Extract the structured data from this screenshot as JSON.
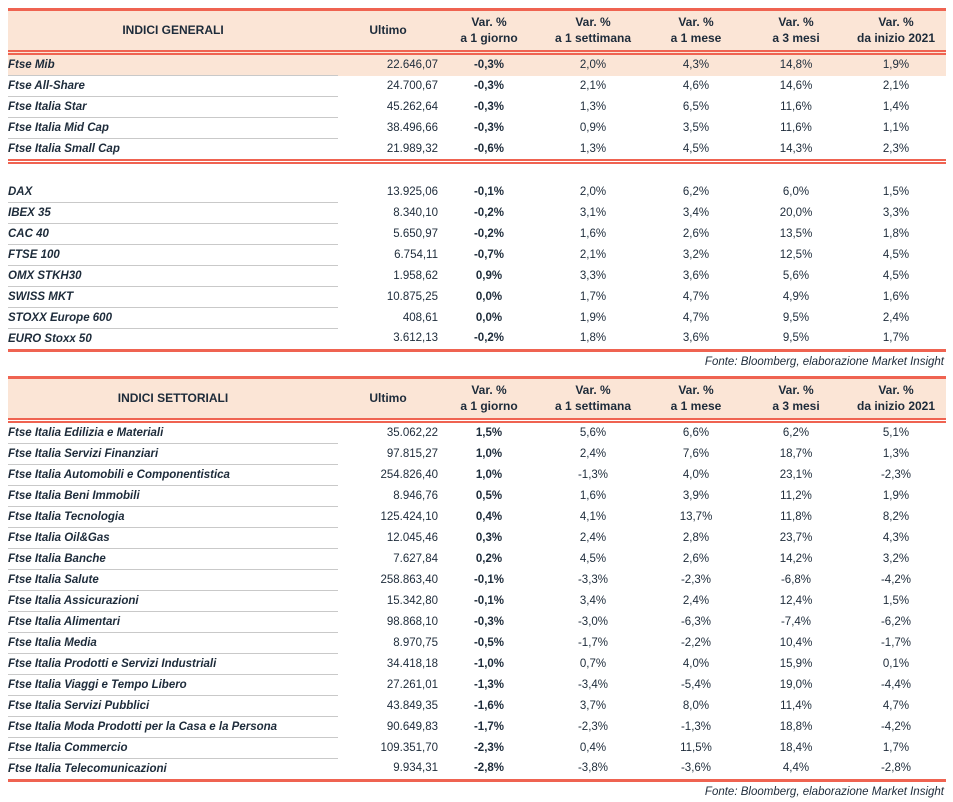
{
  "source_note": "Fonte: Bloomberg, elaborazione Market Insight",
  "colors": {
    "accent_red": "#ef6351",
    "header_peach": "#fbe5d6",
    "text_dark": "#1d2b3a",
    "row_separator_gray": "#c9c9c9"
  },
  "column_headers": {
    "var_label": "Var. %",
    "ultimo": "Ultimo",
    "periods": [
      "a 1 giorno",
      "a 1 settimana",
      "a 1 mese",
      "a 3 mesi",
      "da inizio 2021"
    ]
  },
  "tables": [
    {
      "title": "INDICI GENERALI",
      "groups": [
        {
          "rows": [
            {
              "name": "Ftse Mib",
              "ultimo": "22.646,07",
              "vars": [
                "-0,3%",
                "2,0%",
                "4,3%",
                "14,8%",
                "1,9%"
              ],
              "highlight": true
            },
            {
              "name": "Ftse All-Share",
              "ultimo": "24.700,67",
              "vars": [
                "-0,3%",
                "2,1%",
                "4,6%",
                "14,6%",
                "2,1%"
              ]
            },
            {
              "name": "Ftse Italia Star",
              "ultimo": "45.262,64",
              "vars": [
                "-0,3%",
                "1,3%",
                "6,5%",
                "11,6%",
                "1,4%"
              ]
            },
            {
              "name": "Ftse Italia Mid Cap",
              "ultimo": "38.496,66",
              "vars": [
                "-0,3%",
                "0,9%",
                "3,5%",
                "11,6%",
                "1,1%"
              ]
            },
            {
              "name": "Ftse Italia Small Cap",
              "ultimo": "21.989,32",
              "vars": [
                "-0,6%",
                "1,3%",
                "4,5%",
                "14,3%",
                "2,3%"
              ]
            }
          ]
        },
        {
          "rows": [
            {
              "name": "DAX",
              "ultimo": "13.925,06",
              "vars": [
                "-0,1%",
                "2,0%",
                "6,2%",
                "6,0%",
                "1,5%"
              ]
            },
            {
              "name": "IBEX 35",
              "ultimo": "8.340,10",
              "vars": [
                "-0,2%",
                "3,1%",
                "3,4%",
                "20,0%",
                "3,3%"
              ]
            },
            {
              "name": "CAC 40",
              "ultimo": "5.650,97",
              "vars": [
                "-0,2%",
                "1,6%",
                "2,6%",
                "13,5%",
                "1,8%"
              ]
            },
            {
              "name": "FTSE 100",
              "ultimo": "6.754,11",
              "vars": [
                "-0,7%",
                "2,1%",
                "3,2%",
                "12,5%",
                "4,5%"
              ]
            },
            {
              "name": "OMX STKH30",
              "ultimo": "1.958,62",
              "vars": [
                "0,9%",
                "3,3%",
                "3,6%",
                "5,6%",
                "4,5%"
              ]
            },
            {
              "name": "SWISS MKT",
              "ultimo": "10.875,25",
              "vars": [
                "0,0%",
                "1,7%",
                "4,7%",
                "4,9%",
                "1,6%"
              ]
            },
            {
              "name": "STOXX Europe 600",
              "ultimo": "408,61",
              "vars": [
                "0,0%",
                "1,9%",
                "4,7%",
                "9,5%",
                "2,4%"
              ]
            },
            {
              "name": "EURO Stoxx 50",
              "ultimo": "3.612,13",
              "vars": [
                "-0,2%",
                "1,8%",
                "3,6%",
                "9,5%",
                "1,7%"
              ]
            }
          ]
        }
      ]
    },
    {
      "title": "INDICI SETTORIALI",
      "groups": [
        {
          "rows": [
            {
              "name": "Ftse Italia Edilizia e Materiali",
              "ultimo": "35.062,22",
              "vars": [
                "1,5%",
                "5,6%",
                "6,6%",
                "6,2%",
                "5,1%"
              ]
            },
            {
              "name": "Ftse Italia Servizi Finanziari",
              "ultimo": "97.815,27",
              "vars": [
                "1,0%",
                "2,4%",
                "7,6%",
                "18,7%",
                "1,3%"
              ]
            },
            {
              "name": "Ftse Italia Automobili e Componentistica",
              "ultimo": "254.826,40",
              "vars": [
                "1,0%",
                "-1,3%",
                "4,0%",
                "23,1%",
                "-2,3%"
              ]
            },
            {
              "name": "Ftse Italia Beni Immobili",
              "ultimo": "8.946,76",
              "vars": [
                "0,5%",
                "1,6%",
                "3,9%",
                "11,2%",
                "1,9%"
              ]
            },
            {
              "name": "Ftse Italia Tecnologia",
              "ultimo": "125.424,10",
              "vars": [
                "0,4%",
                "4,1%",
                "13,7%",
                "11,8%",
                "8,2%"
              ]
            },
            {
              "name": "Ftse Italia Oil&Gas",
              "ultimo": "12.045,46",
              "vars": [
                "0,3%",
                "2,4%",
                "2,8%",
                "23,7%",
                "4,3%"
              ]
            },
            {
              "name": "Ftse Italia Banche",
              "ultimo": "7.627,84",
              "vars": [
                "0,2%",
                "4,5%",
                "2,6%",
                "14,2%",
                "3,2%"
              ]
            },
            {
              "name": "Ftse Italia Salute",
              "ultimo": "258.863,40",
              "vars": [
                "-0,1%",
                "-3,3%",
                "-2,3%",
                "-6,8%",
                "-4,2%"
              ]
            },
            {
              "name": "Ftse Italia Assicurazioni",
              "ultimo": "15.342,80",
              "vars": [
                "-0,1%",
                "3,4%",
                "2,4%",
                "12,4%",
                "1,5%"
              ]
            },
            {
              "name": "Ftse Italia Alimentari",
              "ultimo": "98.868,10",
              "vars": [
                "-0,3%",
                "-3,0%",
                "-6,3%",
                "-7,4%",
                "-6,2%"
              ]
            },
            {
              "name": "Ftse Italia Media",
              "ultimo": "8.970,75",
              "vars": [
                "-0,5%",
                "-1,7%",
                "-2,2%",
                "10,4%",
                "-1,7%"
              ]
            },
            {
              "name": "Ftse Italia Prodotti e Servizi Industriali",
              "ultimo": "34.418,18",
              "vars": [
                "-1,0%",
                "0,7%",
                "4,0%",
                "15,9%",
                "0,1%"
              ]
            },
            {
              "name": "Ftse Italia Viaggi e Tempo Libero",
              "ultimo": "27.261,01",
              "vars": [
                "-1,3%",
                "-3,4%",
                "-5,4%",
                "19,0%",
                "-4,4%"
              ]
            },
            {
              "name": "Ftse Italia Servizi Pubblici",
              "ultimo": "43.849,35",
              "vars": [
                "-1,6%",
                "3,7%",
                "8,0%",
                "11,4%",
                "4,7%"
              ]
            },
            {
              "name": "Ftse Italia Moda Prodotti per la Casa e la Persona",
              "ultimo": "90.649,83",
              "vars": [
                "-1,7%",
                "-2,3%",
                "-1,3%",
                "18,8%",
                "-4,2%"
              ]
            },
            {
              "name": "Ftse Italia Commercio",
              "ultimo": "109.351,70",
              "vars": [
                "-2,3%",
                "0,4%",
                "11,5%",
                "18,4%",
                "1,7%"
              ]
            },
            {
              "name": "Ftse Italia Telecomunicazioni",
              "ultimo": "9.934,31",
              "vars": [
                "-2,8%",
                "-3,8%",
                "-3,6%",
                "4,4%",
                "-2,8%"
              ]
            }
          ]
        }
      ]
    }
  ]
}
